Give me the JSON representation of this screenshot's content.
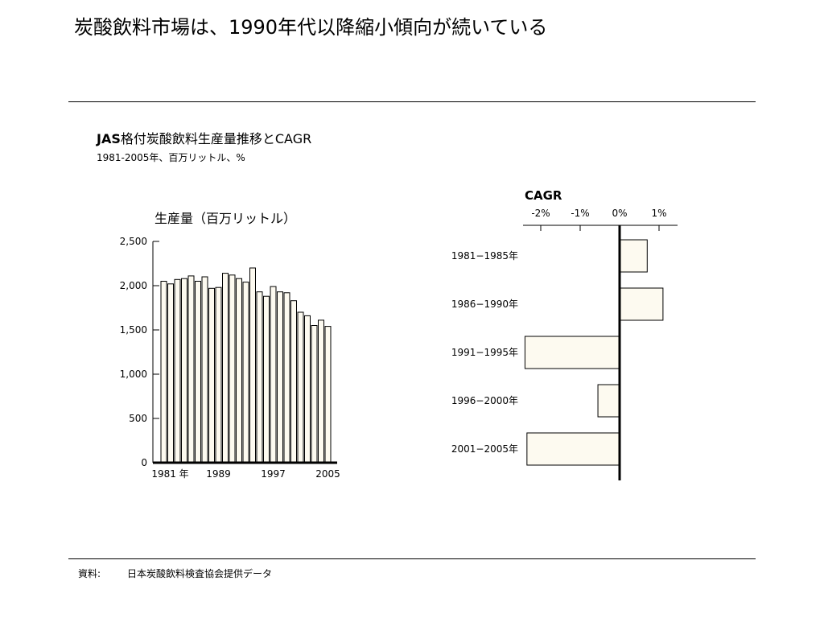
{
  "page": {
    "title": "炭酸飲料市場は、1990年代以降縮小傾向が続いている",
    "source_label": "資料:",
    "source_text": "日本炭酸飲料検査協会提供データ"
  },
  "chart_header": {
    "title_latin": "JAS",
    "title_rest": "格付炭酸飲料生産量推移とCAGR",
    "subtitle": "1981-2005年、百万リットル、%"
  },
  "colors": {
    "bar_fill": "#fdfaf0",
    "stroke": "#000000"
  },
  "chart_data": [
    {
      "type": "bar",
      "title": "生産量（百万リットル）",
      "xlabel": "",
      "ylabel": "",
      "ylim": [
        0,
        2500
      ],
      "yticks": [
        0,
        500,
        1000,
        1500,
        2000,
        2500
      ],
      "ytick_labels": [
        "0",
        "500",
        "1,000",
        "1,500",
        "2,000",
        "2,500"
      ],
      "x_tick_labels": [
        "1981 年",
        "1989",
        "1997",
        "2005"
      ],
      "x_tick_years": [
        1981,
        1989,
        1997,
        2005
      ],
      "grid": false,
      "categories": [
        1981,
        1982,
        1983,
        1984,
        1985,
        1986,
        1987,
        1988,
        1989,
        1990,
        1991,
        1992,
        1993,
        1994,
        1995,
        1996,
        1997,
        1998,
        1999,
        2000,
        2001,
        2002,
        2003,
        2004,
        2005
      ],
      "values": [
        2050,
        2020,
        2070,
        2080,
        2110,
        2050,
        2100,
        1970,
        1980,
        2140,
        2120,
        2080,
        2040,
        2200,
        1930,
        1880,
        1990,
        1930,
        1920,
        1830,
        1700,
        1660,
        1550,
        1610,
        1540
      ]
    },
    {
      "type": "bar",
      "orientation": "horizontal",
      "title": "CAGR",
      "xlabel": "",
      "ylabel": "",
      "xlim": [
        -2.4,
        1.5
      ],
      "xticks": [
        -2,
        -1,
        0,
        1
      ],
      "xtick_labels": [
        "-2%",
        "-1%",
        "0%",
        "1%"
      ],
      "grid": false,
      "categories": [
        "1981−1985年",
        "1986−1990年",
        "1991−1995年",
        "1996−2000年",
        "2001−2005年"
      ],
      "values": [
        0.7,
        1.1,
        -2.4,
        -0.55,
        -2.35
      ]
    }
  ]
}
